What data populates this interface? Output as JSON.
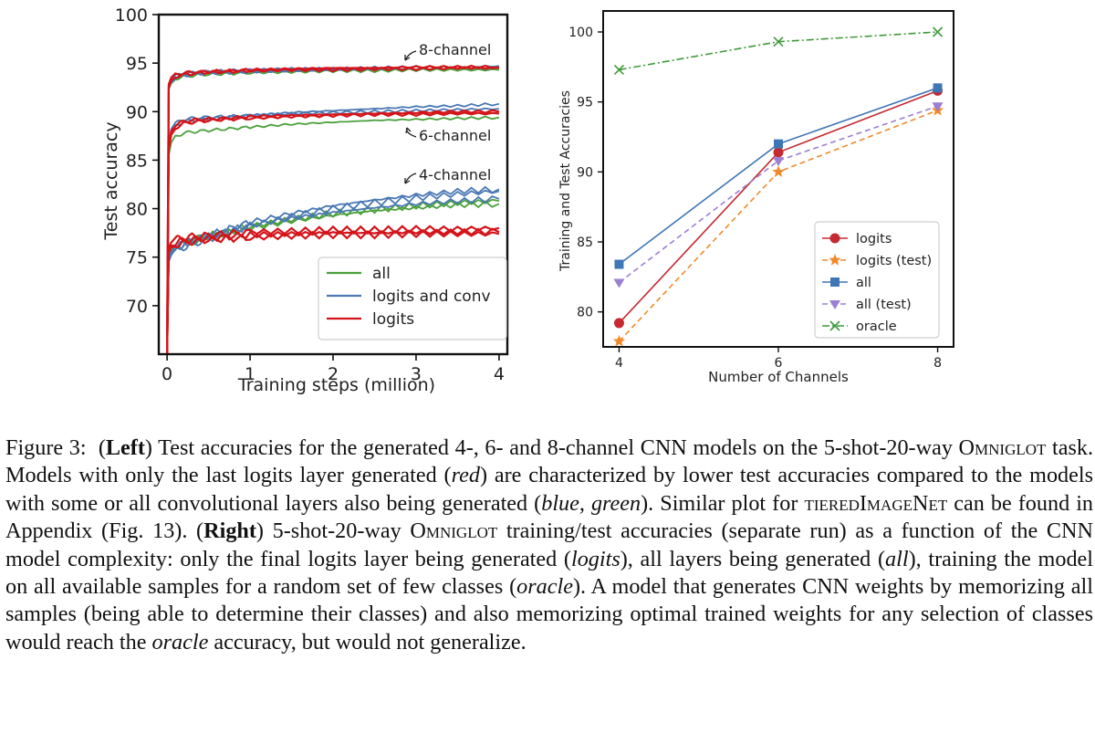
{
  "chart_data": [
    {
      "type": "line",
      "ylabel": "Test accuracy",
      "xlabel": "Training steps (million)",
      "xlim": [
        -0.1,
        4.1
      ],
      "ylim": [
        65,
        100
      ],
      "x_ticks": [
        "0",
        "1",
        "2",
        "3",
        "4"
      ],
      "y_ticks": [
        "70",
        "75",
        "80",
        "85",
        "90",
        "95",
        "100"
      ],
      "grid": false,
      "legend_position": "bottom-right",
      "legend": [
        {
          "label": "all",
          "color": "#4aa03a"
        },
        {
          "label": "logits and conv",
          "color": "#4a78b4"
        },
        {
          "label": "logits",
          "color": "#d4141a"
        }
      ],
      "annotations": [
        "8-channel",
        "6-channel",
        "4-channel"
      ],
      "x": [
        0.0,
        0.02,
        0.05,
        0.1,
        0.2,
        0.4,
        0.7,
        1.0,
        1.5,
        2.0,
        2.5,
        3.0,
        3.5,
        4.0
      ],
      "series": [
        {
          "group": "8-channel",
          "kind": "logits",
          "values": [
            65.0,
            92.5,
            93.2,
            93.6,
            93.8,
            94.0,
            94.1,
            94.2,
            94.3,
            94.3,
            94.4,
            94.4,
            94.5,
            94.5
          ]
        },
        {
          "group": "8-channel",
          "kind": "logits",
          "values": [
            65.0,
            92.8,
            93.5,
            93.8,
            94.0,
            94.1,
            94.2,
            94.3,
            94.4,
            94.5,
            94.5,
            94.6,
            94.6,
            94.6
          ]
        },
        {
          "group": "8-channel",
          "kind": "logits and conv",
          "values": [
            65.0,
            92.6,
            93.3,
            93.7,
            93.9,
            94.1,
            94.2,
            94.3,
            94.4,
            94.4,
            94.5,
            94.6,
            94.6,
            94.7
          ]
        },
        {
          "group": "8-channel",
          "kind": "logits and conv",
          "values": [
            65.0,
            92.4,
            93.0,
            93.5,
            93.7,
            93.9,
            94.0,
            94.1,
            94.2,
            94.3,
            94.4,
            94.4,
            94.5,
            94.5
          ]
        },
        {
          "group": "8-channel",
          "kind": "all",
          "values": [
            65.0,
            92.3,
            92.9,
            93.4,
            93.6,
            93.8,
            93.9,
            94.0,
            94.1,
            94.2,
            94.2,
            94.3,
            94.3,
            94.3
          ]
        },
        {
          "group": "6-channel",
          "kind": "logits and conv",
          "values": [
            65.0,
            86.0,
            87.8,
            88.5,
            89.0,
            89.2,
            89.4,
            89.6,
            89.9,
            90.1,
            90.3,
            90.5,
            90.6,
            90.8
          ]
        },
        {
          "group": "6-channel",
          "kind": "logits and conv",
          "values": [
            65.0,
            86.5,
            88.2,
            88.8,
            89.2,
            89.4,
            89.5,
            89.6,
            89.8,
            89.9,
            90.0,
            90.1,
            90.2,
            90.3
          ]
        },
        {
          "group": "6-channel",
          "kind": "logits",
          "values": [
            65.0,
            86.3,
            88.0,
            88.6,
            89.0,
            89.2,
            89.3,
            89.5,
            89.6,
            89.7,
            89.8,
            89.9,
            90.0,
            90.0
          ]
        },
        {
          "group": "6-channel",
          "kind": "logits",
          "values": [
            65.0,
            86.1,
            87.6,
            88.3,
            88.8,
            89.0,
            89.2,
            89.3,
            89.5,
            89.6,
            89.7,
            89.7,
            89.8,
            89.8
          ]
        },
        {
          "group": "6-channel",
          "kind": "all",
          "values": [
            65.0,
            85.5,
            86.8,
            87.4,
            87.8,
            88.0,
            88.2,
            88.4,
            88.7,
            88.9,
            89.1,
            89.2,
            89.3,
            89.4
          ]
        },
        {
          "group": "4-channel",
          "kind": "logits",
          "values": [
            65.0,
            76.0,
            76.5,
            76.8,
            77.0,
            77.2,
            77.4,
            77.6,
            77.7,
            77.8,
            77.8,
            77.9,
            77.9,
            78.0
          ]
        },
        {
          "group": "4-channel",
          "kind": "logits",
          "values": [
            65.0,
            75.8,
            76.2,
            76.5,
            76.7,
            76.9,
            77.1,
            77.3,
            77.4,
            77.5,
            77.5,
            77.6,
            77.6,
            77.6
          ]
        },
        {
          "group": "4-channel",
          "kind": "logits",
          "values": [
            65.0,
            75.5,
            76.0,
            76.3,
            76.5,
            76.7,
            76.9,
            77.0,
            77.2,
            77.3,
            77.3,
            77.4,
            77.4,
            77.4
          ]
        },
        {
          "group": "4-channel",
          "kind": "logits and conv",
          "values": [
            65.0,
            74.8,
            75.4,
            75.9,
            76.4,
            77.0,
            77.8,
            78.6,
            79.5,
            80.3,
            80.9,
            81.4,
            81.8,
            82.0
          ]
        },
        {
          "group": "4-channel",
          "kind": "logits and conv",
          "values": [
            65.0,
            74.5,
            75.2,
            75.6,
            76.0,
            76.6,
            77.4,
            78.2,
            79.2,
            80.0,
            80.6,
            81.1,
            81.5,
            81.8
          ]
        },
        {
          "group": "4-channel",
          "kind": "logits and conv",
          "values": [
            65.0,
            75.0,
            75.6,
            76.0,
            76.4,
            76.9,
            77.6,
            78.3,
            79.0,
            79.6,
            80.1,
            80.5,
            80.8,
            81.0
          ]
        },
        {
          "group": "4-channel",
          "kind": "all",
          "values": [
            65.0,
            75.2,
            75.8,
            76.2,
            76.5,
            77.0,
            77.6,
            78.2,
            78.9,
            79.5,
            79.9,
            80.3,
            80.6,
            80.8
          ]
        },
        {
          "group": "4-channel",
          "kind": "all",
          "values": [
            65.0,
            74.9,
            75.5,
            75.9,
            76.3,
            76.8,
            77.4,
            78.0,
            78.7,
            79.3,
            79.8,
            80.1,
            80.4,
            80.5
          ]
        }
      ]
    },
    {
      "type": "line",
      "xlabel": "Number of Channels",
      "ylabel": "Training and Test Accuracies",
      "categories": [
        "4",
        "6",
        "8"
      ],
      "x": [
        4,
        6,
        8
      ],
      "xlim": [
        3.8,
        8.2
      ],
      "ylim": [
        77.5,
        101.5
      ],
      "y_ticks": [
        "80",
        "85",
        "90",
        "95",
        "100"
      ],
      "grid": false,
      "legend_position": "bottom-right",
      "series": [
        {
          "name": "logits",
          "values": [
            79.2,
            91.4,
            95.8
          ],
          "color": "#c42a30",
          "marker": "circle",
          "dash": "solid"
        },
        {
          "name": "logits (test)",
          "values": [
            77.9,
            90.0,
            94.4
          ],
          "color": "#f0892a",
          "marker": "star",
          "dash": "dashed"
        },
        {
          "name": "all",
          "values": [
            83.4,
            92.0,
            96.0
          ],
          "color": "#3f76b5",
          "marker": "square",
          "dash": "solid"
        },
        {
          "name": "all (test)",
          "values": [
            82.1,
            90.8,
            94.7
          ],
          "color": "#9b7fd2",
          "marker": "triangle-down",
          "dash": "dashed"
        },
        {
          "name": "oracle",
          "values": [
            97.3,
            99.3,
            100.0
          ],
          "color": "#3f9a3a",
          "marker": "x",
          "dash": "dashdot"
        }
      ]
    }
  ],
  "caption": {
    "figure_label": "Figure 3:",
    "left_label": "Left",
    "left_text_1": "Test accuracies for the generated 4-, 6- and 8-channel CNN models on the 5-shot-20-way",
    "dataset_1": "Omniglot",
    "left_text_2": "task. Models with only the last logits layer generated (",
    "red_word": "red",
    "left_text_3": ") are characterized by lower test accuracies compared to the models with some or all convolutional layers also being generated (",
    "blue_green_words": "blue, green",
    "left_text_4": "). Similar plot for",
    "dataset_2": "tieredImageNet",
    "left_text_5": "can be found in Appendix (Fig. 13).",
    "right_label": "Right",
    "right_text_1": "5-shot-20-way",
    "dataset_3": "Omniglot",
    "right_text_2": "training/test accuracies (separate run) as a function of the CNN model complexity: only the final logits layer being generated (",
    "logits_word": "logits",
    "right_text_3": "), all layers being generated (",
    "all_word": "all",
    "right_text_4": "), training the model on all available samples for a random set of few classes (",
    "oracle_word": "oracle",
    "right_text_5": "). A model that generates CNN weights by memorizing all samples (being able to determine their classes) and also memorizing optimal trained weights for any selection of classes would reach the",
    "oracle_word_2": "oracle",
    "right_text_6": "accuracy, but would not generalize."
  }
}
